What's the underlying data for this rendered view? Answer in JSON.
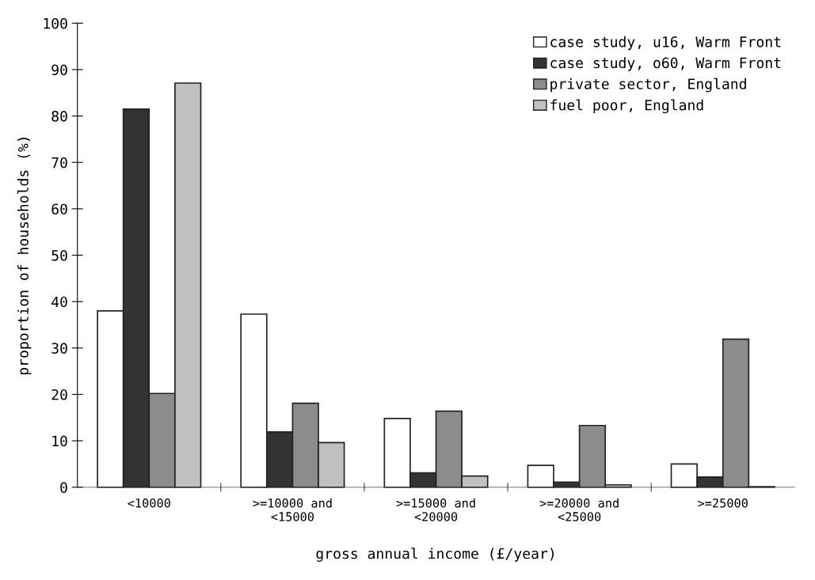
{
  "chart_data": {
    "type": "bar",
    "xlabel": "gross annual income (£/year)",
    "ylabel": "proportion of households (%)",
    "categories": [
      "<10000",
      ">=10000 and\n<15000",
      ">=15000 and\n<20000",
      ">=20000 and\n<25000",
      ">=25000"
    ],
    "series": [
      {
        "name": "case study, u16, Warm Front",
        "color": "#ffffff",
        "values": [
          38.0,
          37.3,
          14.8,
          4.7,
          5.0
        ]
      },
      {
        "name": "case study, o60, Warm Front",
        "color": "#333333",
        "values": [
          81.5,
          11.9,
          3.1,
          1.1,
          2.2
        ]
      },
      {
        "name": "private sector, England",
        "color": "#8c8c8c",
        "values": [
          20.2,
          18.1,
          16.4,
          13.3,
          31.9
        ]
      },
      {
        "name": "fuel poor, England",
        "color": "#c0c0c0",
        "values": [
          87.1,
          9.6,
          2.4,
          0.5,
          0.1
        ]
      }
    ],
    "ylim": [
      0,
      100
    ],
    "yticks": [
      0,
      10,
      20,
      30,
      40,
      50,
      60,
      70,
      80,
      90,
      100
    ],
    "grid": false,
    "legend": "top right"
  }
}
